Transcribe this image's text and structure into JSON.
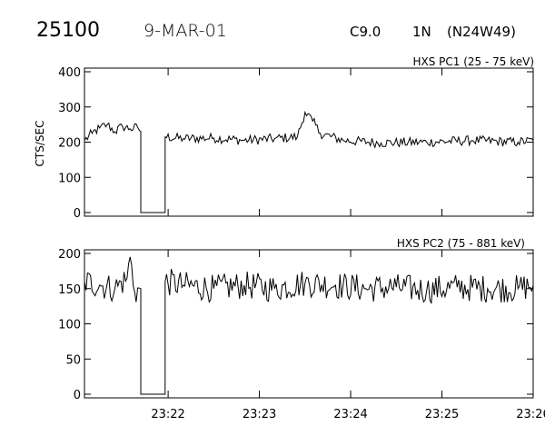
{
  "header": {
    "event_id": "25100",
    "date": "9-MAR-01",
    "flare_class": "C9.0",
    "importance": "1N",
    "location": "(N24W49)"
  },
  "chart_data": [
    {
      "type": "line",
      "title": "HXS PC1 (25 - 75 keV)",
      "ylabel": "CTS/SEC",
      "xlabel": "",
      "ylim": [
        0,
        400
      ],
      "yticks": [
        0,
        100,
        200,
        300,
        400
      ],
      "xlim": [
        "23:21:05",
        "23:26:00"
      ],
      "series": [
        {
          "segments": [
            {
              "x": [
                "23:21:05",
                "23:21:10",
                "23:21:15",
                "23:21:20",
                "23:21:25",
                "23:21:30",
                "23:21:35",
                "23:21:40",
                "23:21:42"
              ],
              "y": [
                205,
                225,
                240,
                250,
                230,
                245,
                238,
                242,
                230
              ]
            },
            {
              "x": [
                "23:21:58",
                "23:22:10",
                "23:22:30",
                "23:22:50",
                "23:23:10",
                "23:23:25",
                "23:23:30",
                "23:23:35",
                "23:23:40",
                "23:23:55",
                "23:24:20",
                "23:24:50",
                "23:25:20",
                "23:25:50",
                "23:26:00"
              ],
              "y": [
                215,
                210,
                212,
                205,
                210,
                215,
                285,
                260,
                225,
                205,
                198,
                200,
                205,
                200,
                205
              ]
            }
          ]
        }
      ]
    },
    {
      "type": "line",
      "title": "HXS PC2 (75 - 881 keV)",
      "ylabel": "",
      "xlabel": "",
      "ylim": [
        0,
        200
      ],
      "yticks": [
        0,
        50,
        100,
        150,
        200
      ],
      "xlim": [
        "23:21:05",
        "23:26:00"
      ],
      "xticks": [
        "23:22",
        "23:23",
        "23:24",
        "23:25",
        "23:26"
      ],
      "series": [
        {
          "segments": [
            {
              "x": [
                "23:21:05",
                "23:21:15",
                "23:21:25",
                "23:21:33",
                "23:21:35",
                "23:21:38",
                "23:21:42"
              ],
              "y": [
                160,
                155,
                150,
                165,
                195,
                145,
                150
              ]
            },
            {
              "x": [
                "23:21:58",
                "23:22:10",
                "23:22:30",
                "23:22:50",
                "23:23:10",
                "23:23:30",
                "23:23:50",
                "23:24:10",
                "23:24:30",
                "23:24:50",
                "23:25:10",
                "23:25:30",
                "23:25:50",
                "23:26:00"
              ],
              "y": [
                160,
                155,
                150,
                155,
                150,
                158,
                155,
                150,
                152,
                148,
                152,
                150,
                150,
                155
              ]
            }
          ]
        }
      ]
    }
  ]
}
